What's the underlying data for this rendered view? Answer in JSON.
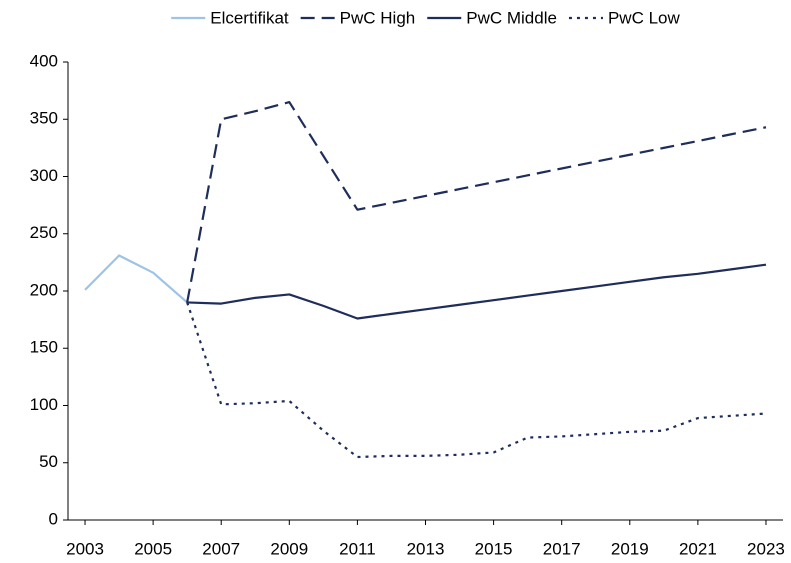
{
  "chart_data": {
    "type": "line",
    "x": [
      2003,
      2004,
      2005,
      2006,
      2007,
      2008,
      2009,
      2010,
      2011,
      2012,
      2013,
      2014,
      2015,
      2016,
      2017,
      2018,
      2019,
      2020,
      2021,
      2022,
      2023
    ],
    "series": [
      {
        "name": "Elcertifikat",
        "color": "#9dc3e6",
        "dash": "solid",
        "values": [
          201,
          231,
          216,
          190,
          null,
          null,
          null,
          null,
          null,
          null,
          null,
          null,
          null,
          null,
          null,
          null,
          null,
          null,
          null,
          null,
          null
        ]
      },
      {
        "name": "PwC High",
        "color": "#1f2d5a",
        "dash": "dashed",
        "values": [
          null,
          null,
          null,
          190,
          350,
          357,
          365,
          318,
          271,
          277,
          283,
          289,
          295,
          301,
          307,
          313,
          319,
          325,
          331,
          337,
          343
        ]
      },
      {
        "name": "PwC Middle",
        "color": "#1f2d5a",
        "dash": "solid",
        "values": [
          null,
          null,
          null,
          190,
          189,
          194,
          197,
          187,
          176,
          180,
          184,
          188,
          192,
          196,
          200,
          204,
          208,
          212,
          215,
          219,
          223
        ]
      },
      {
        "name": "PwC Low",
        "color": "#1f2d5a",
        "dash": "dotted",
        "values": [
          null,
          null,
          null,
          190,
          101,
          102,
          104,
          78,
          55,
          56,
          56,
          57,
          59,
          72,
          73,
          75,
          77,
          78,
          89,
          91,
          93
        ]
      }
    ],
    "xlim": [
      2002.5,
      2023.5
    ],
    "xticks": [
      2003,
      2005,
      2007,
      2009,
      2011,
      2013,
      2015,
      2017,
      2019,
      2021,
      2023
    ],
    "ylim": [
      0,
      400
    ],
    "yticks": [
      0,
      50,
      100,
      150,
      200,
      250,
      300,
      350,
      400
    ],
    "grid": false,
    "legend": "top"
  }
}
